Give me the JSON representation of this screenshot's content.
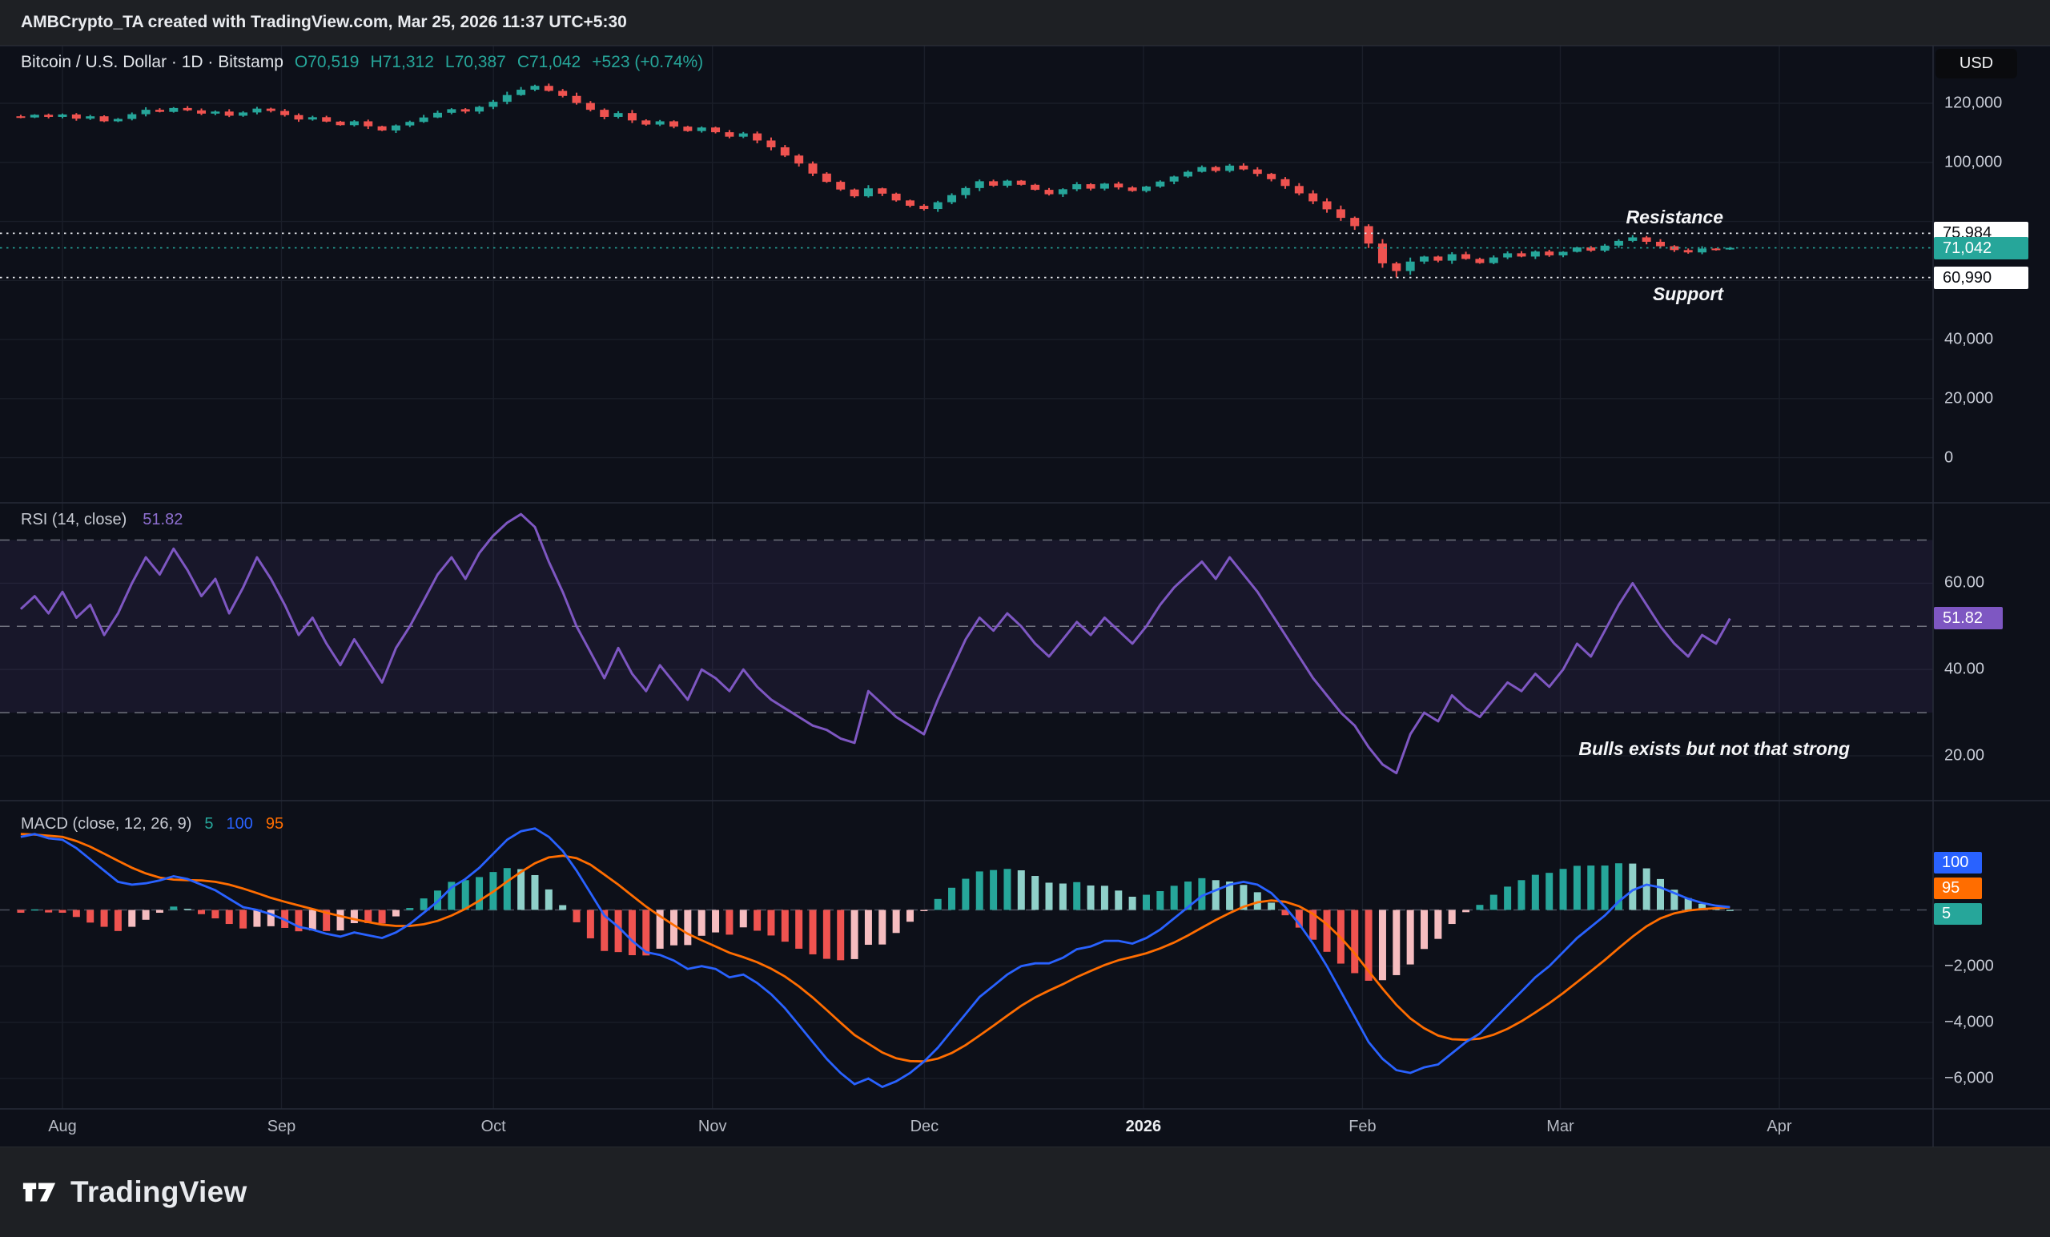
{
  "header": {
    "title": "AMBCrypto_TA created with TradingView.com, Mar 25, 2026 11:37 UTC+5:30"
  },
  "price_pane": {
    "legend": {
      "symbol": "Bitcoin / U.S. Dollar · 1D · Bitstamp",
      "o": "O70,519",
      "h": "H71,312",
      "l": "L70,387",
      "c": "C71,042",
      "change": "+523 (+0.74%)"
    },
    "currency_button": "USD",
    "axis_labels": [
      {
        "v": 120000,
        "t": "120,000"
      },
      {
        "v": 100000,
        "t": "100,000"
      },
      {
        "v": 40000,
        "t": "40,000"
      },
      {
        "v": 20000,
        "t": "20,000"
      },
      {
        "v": 0,
        "t": "0"
      }
    ],
    "levels": {
      "resistance": {
        "label": "Resistance",
        "price": 75984,
        "badge": "75,984"
      },
      "current": {
        "price": 71042,
        "badge": "71,042"
      },
      "support": {
        "label": "Support",
        "price": 60990,
        "badge": "60,990"
      }
    }
  },
  "rsi_pane": {
    "legend_name": "RSI (14, close)",
    "legend_value": "51.82",
    "badge": "51.82",
    "annotation": "Bulls exists but not that strong",
    "axis_labels": [
      {
        "v": 60,
        "t": "60.00"
      },
      {
        "v": 40,
        "t": "40.00"
      },
      {
        "v": 20,
        "t": "20.00"
      }
    ]
  },
  "macd_pane": {
    "legend_name": "MACD (close, 12, 26, 9)",
    "legend_values": [
      {
        "text": "5",
        "color": "#26a69a"
      },
      {
        "text": "100",
        "color": "#2962ff"
      },
      {
        "text": "95",
        "color": "#ff6d00"
      }
    ],
    "badges": [
      {
        "text": "100",
        "color": "#2962ff"
      },
      {
        "text": "95",
        "color": "#ff6d00"
      },
      {
        "text": "5",
        "color": "#26a69a"
      }
    ],
    "axis_labels": [
      {
        "v": -2000,
        "t": "−2,000"
      },
      {
        "v": -4000,
        "t": "−4,000"
      },
      {
        "v": -6000,
        "t": "−6,000"
      }
    ]
  },
  "time_axis": {
    "labels": [
      {
        "t": "Aug",
        "day": 0
      },
      {
        "t": "Sep",
        "day": 31
      },
      {
        "t": "Oct",
        "day": 61
      },
      {
        "t": "Nov",
        "day": 92
      },
      {
        "t": "Dec",
        "day": 122
      },
      {
        "t": "2026",
        "day": 153,
        "em": true
      },
      {
        "t": "Feb",
        "day": 184
      },
      {
        "t": "Mar",
        "day": 212
      },
      {
        "t": "Apr",
        "day": 243
      }
    ]
  },
  "footer": {
    "brand": "TradingView"
  },
  "colors": {
    "up": "#26a69a",
    "down": "#ef5350",
    "rsi_line": "#7e57c2",
    "rsi_band": "rgba(126,87,194,0.10)",
    "macd_line": "#2962ff",
    "signal_line": "#ff6d00",
    "hist_pos": "#26a69a",
    "hist_pos_weak": "#8fd0c9",
    "hist_neg": "#ef5350",
    "hist_neg_weak": "#f6bdc0",
    "level_line": "#e8eaee",
    "current_line": "#26a69a",
    "grid": "#1a1e29",
    "band_dash": "#80838d",
    "zero_dash": "#4c505c",
    "separator": "#262b38"
  },
  "chart_data": [
    {
      "type": "candlestick",
      "name": "BTCUSD 1D",
      "title": "Bitcoin / U.S. Dollar · 1D · Bitstamp",
      "ylim": [
        0,
        140000
      ],
      "approx_days_per_point": 1.9667,
      "last": {
        "open": 70519,
        "high": 71312,
        "low": 70387,
        "close": 71042,
        "change": "+523 (+0.74%)"
      },
      "levels": {
        "resistance": 75984,
        "last": 71042,
        "support": 60990
      },
      "open_first": 115600,
      "wick_overrides": {
        "37": {
          "high": 126300
        },
        "99": {
          "low": 60990
        },
        "123": {
          "high": 71312,
          "low": 70387
        }
      },
      "close": [
        115200,
        116100,
        115400,
        116200,
        114800,
        115600,
        113900,
        114700,
        116300,
        117800,
        117100,
        118400,
        117600,
        116500,
        117200,
        115800,
        116900,
        118200,
        117400,
        116000,
        114500,
        115300,
        113800,
        112600,
        113900,
        112200,
        110800,
        112500,
        113700,
        115200,
        116800,
        118000,
        117200,
        118800,
        120500,
        122800,
        124600,
        125900,
        124200,
        122500,
        120100,
        117800,
        115400,
        116700,
        114200,
        112800,
        113900,
        112100,
        110600,
        111800,
        110200,
        108700,
        109800,
        107400,
        105100,
        102300,
        99600,
        96200,
        93400,
        90800,
        88500,
        91200,
        89400,
        87100,
        85300,
        84200,
        86500,
        88900,
        91300,
        93600,
        92100,
        93800,
        92400,
        90700,
        89200,
        90900,
        92600,
        91100,
        92800,
        91500,
        90300,
        91800,
        93500,
        95200,
        96800,
        98400,
        97100,
        98900,
        97600,
        96100,
        94300,
        92000,
        89500,
        86800,
        84100,
        81200,
        78400,
        72500,
        65800,
        63200,
        66400,
        68100,
        66700,
        68900,
        67300,
        65900,
        67800,
        69200,
        68100,
        69800,
        68500,
        69700,
        71200,
        70100,
        71800,
        73400,
        74600,
        73100,
        71600,
        70300,
        69500,
        70800,
        70519,
        71042
      ]
    },
    {
      "type": "line",
      "name": "RSI (14, close)",
      "current": 51.82,
      "ylim": [
        10,
        80
      ],
      "bands": {
        "overbought": 70,
        "middle": 50,
        "oversold": 30
      },
      "values": [
        54,
        57,
        53,
        58,
        52,
        55,
        48,
        53,
        60,
        66,
        62,
        68,
        63,
        57,
        61,
        53,
        59,
        66,
        61,
        55,
        48,
        52,
        46,
        41,
        47,
        42,
        37,
        45,
        50,
        56,
        62,
        66,
        61,
        67,
        71,
        74,
        76,
        73,
        65,
        58,
        50,
        44,
        38,
        45,
        39,
        35,
        41,
        37,
        33,
        40,
        38,
        35,
        40,
        36,
        33,
        31,
        29,
        27,
        26,
        24,
        23,
        35,
        32,
        29,
        27,
        25,
        33,
        40,
        47,
        52,
        49,
        53,
        50,
        46,
        43,
        47,
        51,
        48,
        52,
        49,
        46,
        50,
        55,
        59,
        62,
        65,
        61,
        66,
        62,
        58,
        53,
        48,
        43,
        38,
        34,
        30,
        27,
        22,
        18,
        16,
        25,
        30,
        28,
        34,
        31,
        29,
        33,
        37,
        35,
        39,
        36,
        40,
        46,
        43,
        49,
        55,
        60,
        55,
        50,
        46,
        43,
        48,
        46,
        51.82
      ]
    },
    {
      "type": "macd",
      "name": "MACD (close, 12, 26, 9)",
      "current": {
        "histogram": 5,
        "macd": 100,
        "signal": 95
      },
      "ylim": [
        -7000,
        4000
      ],
      "histogram_note": "histogram = macd minus signal",
      "macd": [
        2600,
        2700,
        2550,
        2500,
        2200,
        1800,
        1400,
        1000,
        900,
        950,
        1050,
        1200,
        1100,
        900,
        700,
        400,
        100,
        0,
        -150,
        -350,
        -600,
        -700,
        -850,
        -950,
        -800,
        -900,
        -1000,
        -800,
        -500,
        -100,
        300,
        800,
        1100,
        1500,
        2000,
        2500,
        2800,
        2900,
        2600,
        2100,
        1400,
        600,
        -200,
        -600,
        -1100,
        -1500,
        -1600,
        -1800,
        -2100,
        -2000,
        -2100,
        -2400,
        -2300,
        -2600,
        -3000,
        -3500,
        -4100,
        -4700,
        -5300,
        -5800,
        -6200,
        -6000,
        -6300,
        -6100,
        -5800,
        -5400,
        -4900,
        -4300,
        -3700,
        -3100,
        -2700,
        -2300,
        -2000,
        -1900,
        -1900,
        -1700,
        -1400,
        -1300,
        -1100,
        -1100,
        -1200,
        -1000,
        -700,
        -300,
        100,
        500,
        700,
        900,
        1000,
        900,
        600,
        100,
        -500,
        -1200,
        -2000,
        -2900,
        -3800,
        -4700,
        -5300,
        -5700,
        -5800,
        -5600,
        -5500,
        -5100,
        -4700,
        -4400,
        -3900,
        -3400,
        -2900,
        -2400,
        -2000,
        -1500,
        -1000,
        -600,
        -200,
        300,
        700,
        900,
        800,
        600,
        400,
        250,
        150,
        100
      ],
      "signal": [
        2700,
        2680,
        2640,
        2600,
        2450,
        2250,
        2000,
        1750,
        1500,
        1300,
        1150,
        1080,
        1060,
        1050,
        1000,
        900,
        760,
        600,
        430,
        290,
        160,
        30,
        -100,
        -220,
        -330,
        -430,
        -520,
        -570,
        -570,
        -510,
        -390,
        -200,
        40,
        330,
        650,
        1010,
        1350,
        1660,
        1870,
        1930,
        1840,
        1610,
        1260,
        900,
        510,
        120,
        -220,
        -540,
        -850,
        -1080,
        -1300,
        -1520,
        -1680,
        -1860,
        -2090,
        -2370,
        -2720,
        -3120,
        -3560,
        -4010,
        -4450,
        -4760,
        -5070,
        -5280,
        -5380,
        -5390,
        -5290,
        -5090,
        -4810,
        -4470,
        -4120,
        -3760,
        -3410,
        -3110,
        -2870,
        -2640,
        -2390,
        -2170,
        -1960,
        -1790,
        -1670,
        -1540,
        -1370,
        -1160,
        -910,
        -630,
        -360,
        -110,
        110,
        270,
        340,
        290,
        130,
        -140,
        -510,
        -990,
        -1550,
        -2180,
        -2800,
        -3380,
        -3860,
        -4210,
        -4470,
        -4600,
        -4620,
        -4580,
        -4440,
        -4230,
        -3960,
        -3650,
        -3320,
        -2960,
        -2570,
        -2180,
        -1780,
        -1360,
        -950,
        -580,
        -300,
        -120,
        -20,
        30,
        60,
        95
      ]
    }
  ]
}
